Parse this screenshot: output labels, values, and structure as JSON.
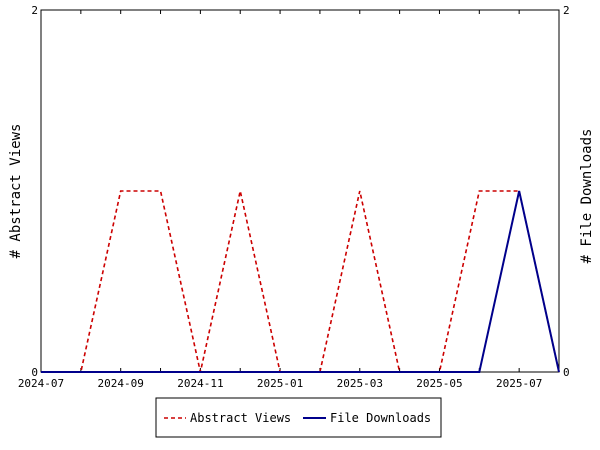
{
  "chart_data": {
    "type": "line",
    "x": [
      "2024-07",
      "2024-08",
      "2024-09",
      "2024-10",
      "2024-11",
      "2024-12",
      "2025-01",
      "2025-02",
      "2025-03",
      "2025-04",
      "2025-05",
      "2025-06",
      "2025-07",
      "2025-08"
    ],
    "x_tick_labels": [
      "2024-07",
      "2024-09",
      "2024-11",
      "2025-01",
      "2025-03",
      "2025-05",
      "2025-07"
    ],
    "series": [
      {
        "name": "Abstract Views",
        "axis": "left",
        "color": "#cc0000",
        "dash": "dashed",
        "values": [
          0,
          0,
          1,
          1,
          0,
          1,
          0,
          0,
          1,
          0,
          0,
          1,
          1,
          0
        ]
      },
      {
        "name": "File Downloads",
        "axis": "right",
        "color": "#00008b",
        "dash": "solid",
        "values": [
          0,
          0,
          0,
          0,
          0,
          0,
          0,
          0,
          0,
          0,
          0,
          0,
          1,
          0
        ]
      }
    ],
    "ylabel": "# Abstract Views",
    "y2label": "# File Downloads",
    "ylim": [
      0,
      2
    ],
    "y2lim": [
      0,
      2
    ],
    "y_ticks": [
      "0",
      "2"
    ],
    "y2_ticks": [
      "0",
      "2"
    ],
    "legend": "bottom"
  }
}
